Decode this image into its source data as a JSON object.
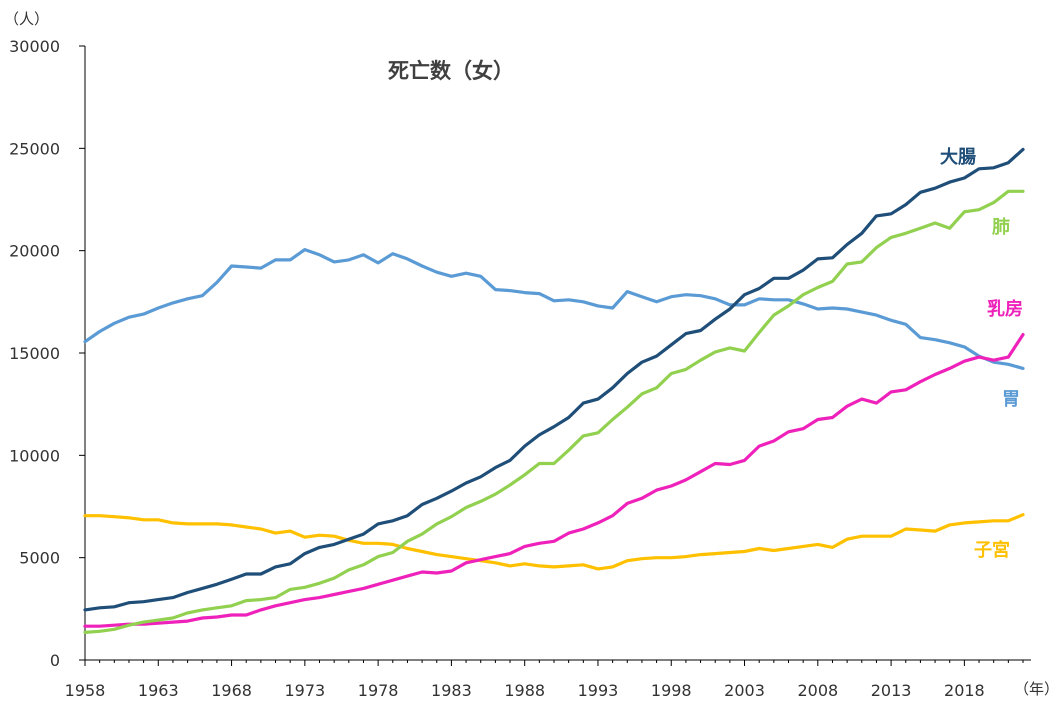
{
  "chart_data": {
    "type": "line",
    "title": "死亡数（女）",
    "y_unit_label": "（人）",
    "x_unit_label": "（年）",
    "ylim": [
      0,
      30000
    ],
    "yticks": [
      0,
      5000,
      10000,
      15000,
      20000,
      25000,
      30000
    ],
    "xlim": [
      1958,
      2022
    ],
    "xticks": [
      1958,
      1963,
      1968,
      1973,
      1978,
      1983,
      1988,
      1993,
      1998,
      2003,
      2008,
      2013,
      2018
    ],
    "grid": false,
    "x": [
      1958,
      1959,
      1960,
      1961,
      1962,
      1963,
      1964,
      1965,
      1966,
      1967,
      1968,
      1969,
      1970,
      1971,
      1972,
      1973,
      1974,
      1975,
      1976,
      1977,
      1978,
      1979,
      1980,
      1981,
      1982,
      1983,
      1984,
      1985,
      1986,
      1987,
      1988,
      1989,
      1990,
      1991,
      1992,
      1993,
      1994,
      1995,
      1996,
      1997,
      1998,
      1999,
      2000,
      2001,
      2002,
      2003,
      2004,
      2005,
      2006,
      2007,
      2008,
      2009,
      2010,
      2011,
      2012,
      2013,
      2014,
      2015,
      2016,
      2017,
      2018,
      2019,
      2020,
      2021,
      2022
    ],
    "series": [
      {
        "name": "大腸",
        "color": "#1f4e79",
        "values": [
          2450,
          2550,
          2600,
          2800,
          2850,
          2950,
          3050,
          3300,
          3500,
          3700,
          3950,
          4200,
          4200,
          4550,
          4700,
          5200,
          5500,
          5650,
          5900,
          6150,
          6650,
          6800,
          7050,
          7600,
          7900,
          8250,
          8650,
          8950,
          9400,
          9750,
          10450,
          11000,
          11400,
          11850,
          12550,
          12750,
          13300,
          14000,
          14550,
          14850,
          15400,
          15950,
          16100,
          16650,
          17150,
          17850,
          18150,
          18650,
          18650,
          19050,
          19600,
          19650,
          20300,
          20850,
          21700,
          21800,
          22250,
          22850,
          23050,
          23350,
          23550,
          24000,
          24050,
          24300,
          24950
        ]
      },
      {
        "name": "肺",
        "color": "#92d050",
        "values": [
          1350,
          1400,
          1500,
          1700,
          1850,
          1950,
          2050,
          2300,
          2450,
          2550,
          2650,
          2900,
          2950,
          3050,
          3450,
          3550,
          3750,
          4000,
          4400,
          4650,
          5050,
          5250,
          5800,
          6150,
          6650,
          7000,
          7450,
          7750,
          8100,
          8550,
          9050,
          9600,
          9600,
          10250,
          10950,
          11100,
          11750,
          12350,
          13000,
          13300,
          14000,
          14200,
          14650,
          15050,
          15250,
          15100,
          16000,
          16850,
          17300,
          17850,
          18200,
          18500,
          19350,
          19450,
          20150,
          20650,
          20850,
          21100,
          21350,
          21100,
          21900,
          22000,
          22350,
          22900,
          22900
        ]
      },
      {
        "name": "乳房",
        "color": "#ee22bb",
        "values": [
          1650,
          1650,
          1700,
          1750,
          1750,
          1800,
          1850,
          1900,
          2050,
          2100,
          2200,
          2200,
          2450,
          2650,
          2800,
          2950,
          3050,
          3200,
          3350,
          3500,
          3700,
          3900,
          4100,
          4300,
          4250,
          4350,
          4750,
          4900,
          5050,
          5200,
          5550,
          5700,
          5800,
          6200,
          6400,
          6700,
          7050,
          7650,
          7900,
          8300,
          8500,
          8800,
          9200,
          9600,
          9550,
          9750,
          10450,
          10700,
          11150,
          11300,
          11750,
          11850,
          12400,
          12750,
          12550,
          13100,
          13200,
          13600,
          13950,
          14250,
          14600,
          14800,
          14650,
          14800,
          15900
        ]
      },
      {
        "name": "胃",
        "color": "#5b9bd5",
        "values": [
          15550,
          16050,
          16450,
          16750,
          16900,
          17200,
          17450,
          17650,
          17800,
          18450,
          19250,
          19200,
          19150,
          19550,
          19550,
          20050,
          19800,
          19450,
          19550,
          19800,
          19400,
          19850,
          19600,
          19250,
          18950,
          18750,
          18900,
          18750,
          18100,
          18050,
          17950,
          17900,
          17550,
          17600,
          17500,
          17300,
          17200,
          18000,
          17750,
          17500,
          17750,
          17850,
          17800,
          17650,
          17350,
          17350,
          17650,
          17600,
          17600,
          17400,
          17150,
          17200,
          17150,
          17000,
          16850,
          16600,
          16400,
          15750,
          15650,
          15500,
          15300,
          14850,
          14550,
          14450,
          14250
        ]
      },
      {
        "name": "子宮",
        "color": "#ffc000",
        "values": [
          7050,
          7050,
          7000,
          6950,
          6850,
          6850,
          6700,
          6650,
          6650,
          6650,
          6600,
          6500,
          6400,
          6200,
          6300,
          6000,
          6100,
          6050,
          5850,
          5700,
          5700,
          5650,
          5450,
          5300,
          5150,
          5050,
          4950,
          4850,
          4750,
          4600,
          4700,
          4600,
          4550,
          4600,
          4650,
          4450,
          4550,
          4850,
          4950,
          5000,
          5000,
          5050,
          5150,
          5200,
          5250,
          5300,
          5450,
          5350,
          5450,
          5550,
          5650,
          5500,
          5900,
          6050,
          6050,
          6050,
          6400,
          6350,
          6300,
          6600,
          6700,
          6750,
          6800,
          6800,
          7100
        ]
      }
    ]
  }
}
